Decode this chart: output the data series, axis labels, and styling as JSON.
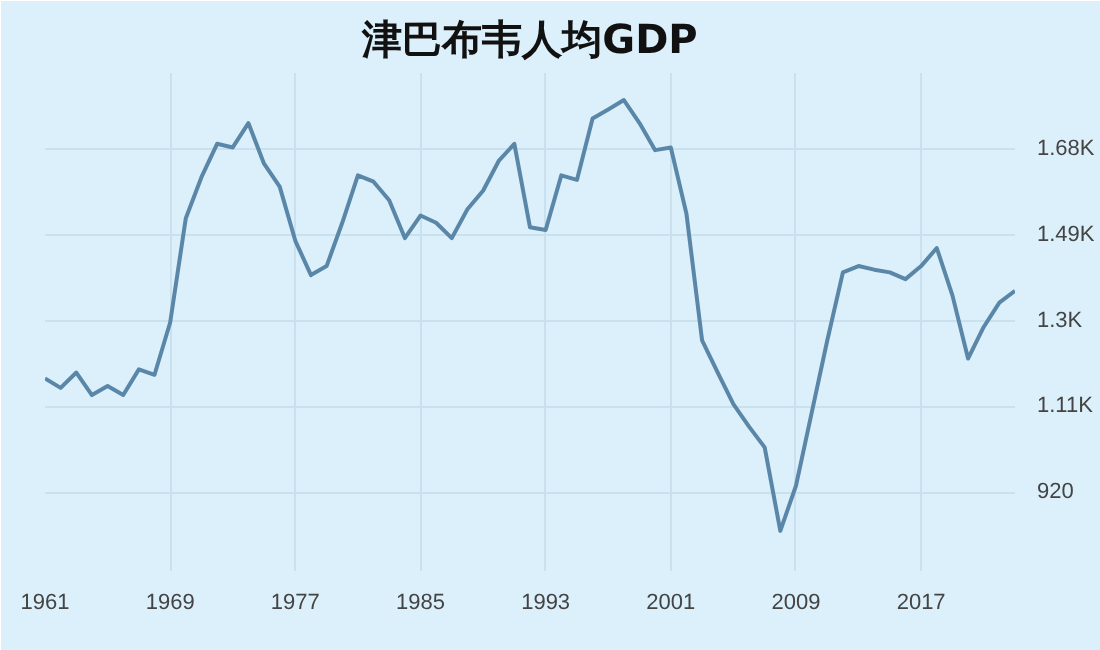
{
  "chart_data": {
    "type": "line",
    "title": "津巴布韦人均GDP",
    "x": [
      1961,
      1962,
      1963,
      1964,
      1965,
      1966,
      1967,
      1968,
      1969,
      1970,
      1971,
      1972,
      1973,
      1974,
      1975,
      1976,
      1977,
      1978,
      1979,
      1980,
      1981,
      1982,
      1983,
      1984,
      1985,
      1986,
      1987,
      1988,
      1989,
      1990,
      1991,
      1992,
      1993,
      1994,
      1995,
      1996,
      1997,
      1998,
      1999,
      2000,
      2001,
      2002,
      2003,
      2004,
      2005,
      2006,
      2007,
      2008,
      2009,
      2010,
      2011,
      2012,
      2013,
      2014,
      2015,
      2016,
      2017,
      2018,
      2019,
      2020,
      2021,
      2022,
      2023
    ],
    "series": [
      {
        "color": "#5a87a8",
        "values": [
          1172,
          1151,
          1185,
          1135,
          1155,
          1135,
          1192,
          1180,
          1296,
          1527,
          1618,
          1692,
          1684,
          1738,
          1648,
          1597,
          1477,
          1401,
          1421,
          1517,
          1622,
          1608,
          1567,
          1483,
          1533,
          1517,
          1483,
          1547,
          1588,
          1654,
          1692,
          1507,
          1501,
          1622,
          1612,
          1748,
          1768,
          1789,
          1738,
          1678,
          1684,
          1537,
          1256,
          1185,
          1115,
          1065,
          1019,
          834,
          934,
          1095,
          1256,
          1407,
          1421,
          1413,
          1407,
          1392,
          1421,
          1461,
          1356,
          1216,
          1286,
          1340,
          1366
        ]
      }
    ],
    "xlim": [
      1961,
      2023
    ],
    "xticks": [
      1961,
      1969,
      1977,
      1985,
      1993,
      2001,
      2009,
      2017
    ],
    "ylim": [
      745,
      1849
    ],
    "yticks": [
      920,
      {
        "value": 1110,
        "label": "1.11K"
      },
      {
        "value": 1300,
        "label": "1.3K"
      },
      {
        "value": 1490,
        "label": "1.49K"
      },
      {
        "value": 1680,
        "label": "1.68K"
      }
    ],
    "grid": true,
    "marker": "none",
    "line_style": "solid"
  }
}
